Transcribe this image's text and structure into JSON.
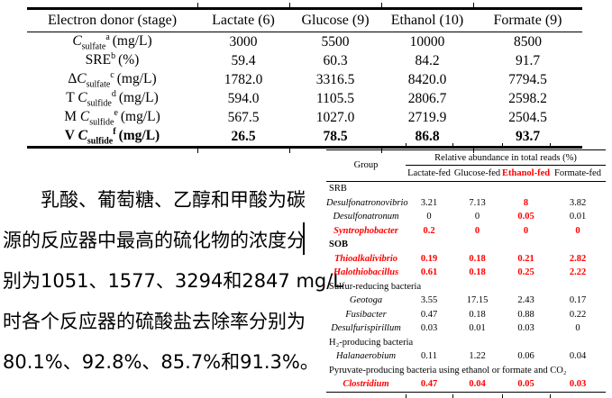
{
  "colors": {
    "highlight_red": "#ff0000",
    "text_black": "#000000"
  },
  "table1": {
    "header": [
      "Electron donor (stage)",
      "Lactate (6)",
      "Glucose (9)",
      "Ethanol (10)",
      "Formate (9)"
    ],
    "rows": [
      {
        "pre": "",
        "sym": "C",
        "sub": "sulfate",
        "sup": "a",
        "unit": "(mg/L)",
        "bold": false,
        "values": [
          "3000",
          "5500",
          "10000",
          "8500"
        ]
      },
      {
        "pre": "SRE",
        "sym": "",
        "sub": "",
        "sup": "b",
        "unit": "(%)",
        "bold": false,
        "values": [
          "59.4",
          "60.3",
          "84.2",
          "91.7"
        ]
      },
      {
        "pre": "Δ",
        "sym": "C",
        "sub": "sulfate",
        "sup": "c",
        "unit": "(mg/L)",
        "bold": false,
        "values": [
          "1782.0",
          "3316.5",
          "8420.0",
          "7794.5"
        ]
      },
      {
        "pre": "T ",
        "sym": "C",
        "sub": "sulfide",
        "sup": "d",
        "unit": "(mg/L)",
        "bold": false,
        "values": [
          "594.0",
          "1105.5",
          "2806.7",
          "2598.2"
        ]
      },
      {
        "pre": "M ",
        "sym": "C",
        "sub": "sulfide",
        "sup": "e",
        "unit": "(mg/L)",
        "bold": false,
        "values": [
          "567.5",
          "1027.0",
          "2719.9",
          "2504.5"
        ]
      },
      {
        "pre": "V ",
        "sym": "C",
        "sub": "sulfide",
        "sup": "f",
        "unit": "(mg/L)",
        "bold": true,
        "values": [
          "26.5",
          "78.5",
          "86.8",
          "93.7"
        ]
      }
    ]
  },
  "paragraph": {
    "lines": [
      "乳酸、葡萄糖、乙醇和甲酸为碳",
      "源的反应器中最高的硫化物的浓度分",
      "别为1051、1577、3294和2847 mg/L",
      "时各个反应器的硫酸盐去除率分别为",
      "80.1%、92.8%、85.7%和91.3%。"
    ]
  },
  "table2": {
    "group_header": "Group",
    "span_header": "Relative abundance in total reads (%)",
    "col_headers": [
      {
        "label": "Lactate-fed",
        "red": false
      },
      {
        "label": "Glucose-fed",
        "red": false
      },
      {
        "label": "Ethanol-fed",
        "red": true
      },
      {
        "label": "Formate-fed",
        "red": false
      }
    ],
    "rows": [
      {
        "type": "section",
        "label": "SRB",
        "bold": false
      },
      {
        "type": "genus",
        "label": "Desulfonatronovibrio",
        "red_label": false,
        "values": [
          "3.21",
          "7.13",
          "8",
          "3.82"
        ],
        "red": [
          0,
          0,
          1,
          0
        ]
      },
      {
        "type": "genus",
        "label": "Desulfonatronum",
        "red_label": false,
        "values": [
          "0",
          "0",
          "0.05",
          "0.01"
        ],
        "red": [
          0,
          0,
          1,
          0
        ]
      },
      {
        "type": "genus",
        "label": "Syntrophobacter",
        "red_label": true,
        "values": [
          "0.2",
          "0",
          "0",
          "0"
        ],
        "red": [
          1,
          1,
          1,
          1
        ]
      },
      {
        "type": "section",
        "label": "SOB",
        "bold": true
      },
      {
        "type": "genus",
        "label": "Thioalkalivibrio",
        "red_label": true,
        "values": [
          "0.19",
          "0.18",
          "0.21",
          "2.82"
        ],
        "red": [
          1,
          1,
          1,
          1
        ]
      },
      {
        "type": "genus",
        "label": "Halothiobacillus",
        "red_label": true,
        "values": [
          "0.61",
          "0.18",
          "0.25",
          "2.22"
        ],
        "red": [
          1,
          1,
          1,
          1
        ]
      },
      {
        "type": "section",
        "label": "Sulfur-reducing bacteria",
        "bold": false
      },
      {
        "type": "genus",
        "label": "Geotoga",
        "red_label": false,
        "values": [
          "3.55",
          "17.15",
          "2.43",
          "0.17"
        ],
        "red": [
          0,
          0,
          0,
          0
        ]
      },
      {
        "type": "genus",
        "label": "Fusibacter",
        "red_label": false,
        "values": [
          "0.47",
          "0.18",
          "0.88",
          "0.22"
        ],
        "red": [
          0,
          0,
          0,
          0
        ]
      },
      {
        "type": "genus",
        "label": "Desulfurispirillum",
        "red_label": false,
        "values": [
          "0.03",
          "0.01",
          "0.03",
          "0"
        ],
        "red": [
          0,
          0,
          0,
          0
        ]
      },
      {
        "type": "section",
        "label": "H₂-producing bacteria",
        "bold": false
      },
      {
        "type": "genus",
        "label": "Halanaerobium",
        "red_label": false,
        "values": [
          "0.11",
          "1.22",
          "0.06",
          "0.04"
        ],
        "red": [
          0,
          0,
          0,
          0
        ]
      },
      {
        "type": "section",
        "label": "Pyruvate-producing bacteria using ethanol or formate and CO₂",
        "bold": false
      },
      {
        "type": "genus",
        "label": "Clostridium",
        "red_label": true,
        "values": [
          "0.47",
          "0.04",
          "0.05",
          "0.03"
        ],
        "red": [
          1,
          1,
          1,
          1
        ]
      }
    ]
  }
}
